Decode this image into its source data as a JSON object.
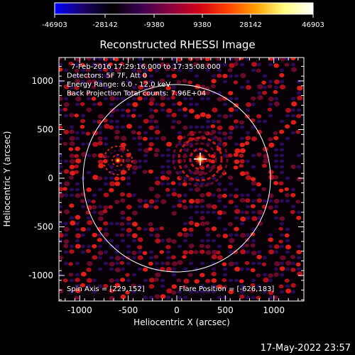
{
  "colorbar": {
    "ticks": [
      "-46903",
      "-28142",
      "-9380",
      "9380",
      "28142",
      "46903"
    ],
    "stops": [
      "#0000ff",
      "#1a0066",
      "#000000",
      "#3a0050",
      "#8a0040",
      "#d00018",
      "#ff4000",
      "#ffa000",
      "#ffff80",
      "#ffffff"
    ]
  },
  "plot": {
    "title": "Reconstructed RHESSI Image",
    "info_lines": [
      "7-Feb-2016 17:29:16.000 to 17:35:08.000",
      "Detectors: 5F 7F, Att 0",
      "Energy Range: 6.0 - 12.0 keV",
      "Back Projection     Total counts: 7.96E+04"
    ],
    "spin_axis": "Spin Axis = [229,152]",
    "flare_position": "Flare Position = [-626,183]",
    "x_axis": {
      "label": "Heliocentric X (arcsec)",
      "ticks": [
        "-1000",
        "-500",
        "0",
        "500",
        "1000"
      ]
    },
    "y_axis": {
      "label": "Heliocentric Y (arcsec)",
      "ticks": [
        "1000",
        "500",
        "0",
        "-500",
        "-1000"
      ]
    }
  },
  "timestamp": "17-May-2022 23:57",
  "colors": {
    "background": "#000000",
    "foreground": "#ffffff"
  }
}
